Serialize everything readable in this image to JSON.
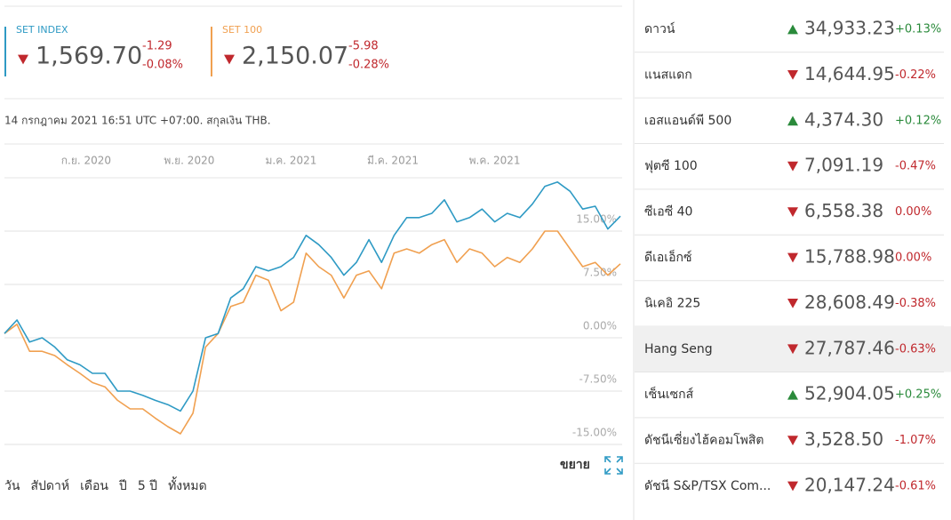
{
  "quotes": [
    {
      "name": "SET INDEX",
      "value": "1,569.70",
      "change": "-1.29",
      "percent": "-0.08%",
      "direction": "down"
    },
    {
      "name": "SET 100",
      "value": "2,150.07",
      "change": "-5.98",
      "percent": "-0.28%",
      "direction": "down"
    }
  ],
  "timestamp": "14 กรกฎาคม 2021 16:51 UTC +07:00. สกุลเงิน THB.",
  "chart_data": {
    "type": "line",
    "xlim": [
      0,
      49
    ],
    "xticks": [
      {
        "value": 6.5,
        "label": "ก.ย. 2020"
      },
      {
        "value": 14.7,
        "label": "พ.ย. 2020"
      },
      {
        "value": 22.8,
        "label": "ม.ค. 2021"
      },
      {
        "value": 30.9,
        "label": "มี.ค. 2021"
      },
      {
        "value": 39,
        "label": "พ.ค. 2021"
      }
    ],
    "ylim": [
      -15,
      22.5
    ],
    "yticks": [
      {
        "value": 15,
        "label": "15.00%"
      },
      {
        "value": 7.5,
        "label": "7.50%"
      },
      {
        "value": 0,
        "label": "0.00%"
      },
      {
        "value": -7.5,
        "label": "-7.50%"
      },
      {
        "value": -15,
        "label": "-15.00%"
      }
    ],
    "grid": true,
    "series": [
      {
        "color": "#2e9ac4",
        "values": [
          0.6,
          2.5,
          -0.6,
          0,
          -1.3,
          -3.1,
          -3.8,
          -5,
          -5,
          -7.5,
          -7.5,
          -8.1,
          -8.8,
          -9.4,
          -10.3,
          -7.5,
          0,
          0.6,
          5.6,
          6.9,
          10,
          9.4,
          10,
          11.3,
          14.4,
          13.1,
          11.3,
          8.8,
          10.6,
          13.8,
          10.6,
          14.4,
          16.9,
          16.9,
          17.5,
          19.4,
          16.3,
          16.9,
          18.1,
          16.3,
          17.5,
          16.9,
          18.8,
          21.3,
          21.9,
          20.6,
          18.1,
          18.5,
          15.3,
          17.1
        ]
      },
      {
        "color": "#f0a050",
        "values": [
          0.6,
          1.9,
          -1.9,
          -1.9,
          -2.5,
          -3.8,
          -5,
          -6.3,
          -6.9,
          -8.8,
          -10,
          -10,
          -11.3,
          -12.5,
          -13.5,
          -10.6,
          -1.3,
          0.6,
          4.4,
          5,
          8.8,
          8.1,
          3.8,
          5,
          11.9,
          10,
          8.8,
          5.6,
          8.8,
          9.4,
          6.9,
          11.9,
          12.5,
          11.9,
          13.1,
          13.8,
          10.6,
          12.5,
          11.9,
          10,
          11.3,
          10.6,
          12.5,
          15,
          15,
          12.5,
          10,
          10.6,
          8.8,
          10.4
        ]
      }
    ]
  },
  "expand_label": "ขยาย",
  "ranges": [
    "วัน",
    "สัปดาห์",
    "เดือน",
    "ปี",
    "5 ปี",
    "ทั้งหมด"
  ],
  "markets": [
    {
      "name": "ดาวน์",
      "value": "34,933.23",
      "change": "+0.13%",
      "direction": "up"
    },
    {
      "name": "แนสแดก",
      "value": "14,644.95",
      "change": "-0.22%",
      "direction": "down"
    },
    {
      "name": "เอสแอนด์พี 500",
      "value": "4,374.30",
      "change": "+0.12%",
      "direction": "up"
    },
    {
      "name": "ฟุตซี 100",
      "value": "7,091.19",
      "change": "-0.47%",
      "direction": "down"
    },
    {
      "name": "ซีเอซี 40",
      "value": "6,558.38",
      "change": "0.00%",
      "direction": "down"
    },
    {
      "name": "ดีเอเอ็กซ์",
      "value": "15,788.98",
      "change": "0.00%",
      "direction": "down"
    },
    {
      "name": "นิเคอิ 225",
      "value": "28,608.49",
      "change": "-0.38%",
      "direction": "down"
    },
    {
      "name": "Hang Seng",
      "value": "27,787.46",
      "change": "-0.63%",
      "direction": "down",
      "highlighted": true
    },
    {
      "name": "เซ็นเซกส์",
      "value": "52,904.05",
      "change": "+0.25%",
      "direction": "up"
    },
    {
      "name": "ดัชนีเซี่ยงไฮ้คอมโพสิต",
      "value": "3,528.50",
      "change": "-1.07%",
      "direction": "down"
    },
    {
      "name": "ดัชนี S&P/TSX Com...",
      "value": "20,147.24",
      "change": "-0.61%",
      "direction": "down"
    }
  ]
}
